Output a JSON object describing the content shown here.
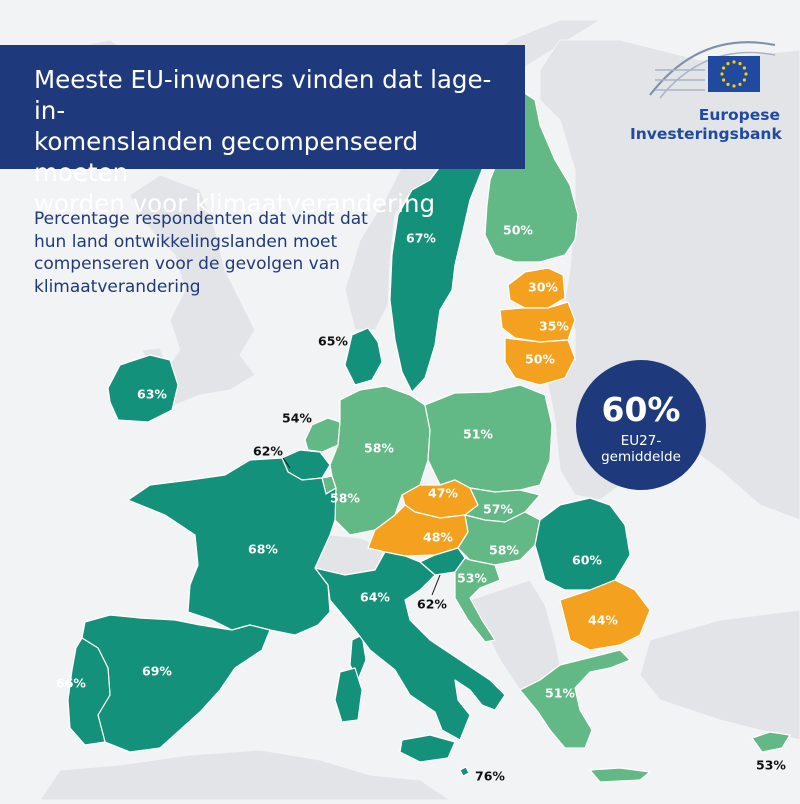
{
  "title": "Meeste EU-inwoners vinden dat lage-in-komenslanden gecompenseerd moeten worden voor klimaatverandering",
  "title_lines": [
    "Meeste EU-inwoners vinden dat lage-in-",
    "komenslanden gecompenseerd moeten",
    "worden voor klimaatverandering"
  ],
  "subtitle_lines": [
    "Percentage respondenten dat vindt dat",
    "hun land ontwikkelingslanden moet",
    "compenseren voor de gevolgen van",
    "klimaatverandering"
  ],
  "logo": {
    "line1": "Europese",
    "line2": "Investeringsbank"
  },
  "average": {
    "value": "60%",
    "label_line1": "EU27-",
    "label_line2": "gemiddelde"
  },
  "colors": {
    "high": "#14917a",
    "mid": "#63b985",
    "low": "#f4a11f",
    "nonEU": "#e2e4e7",
    "sea": "#f2f3f5",
    "brand": "#1f3a7c"
  },
  "countries": [
    {
      "name": "Sweden",
      "value": "67%",
      "cls": "high"
    },
    {
      "name": "Finland",
      "value": "50%",
      "cls": "mid"
    },
    {
      "name": "Estonia",
      "value": "30%",
      "cls": "low"
    },
    {
      "name": "Latvia",
      "value": "35%",
      "cls": "low"
    },
    {
      "name": "Lithuania",
      "value": "50%",
      "cls": "low"
    },
    {
      "name": "Denmark",
      "value": "65%",
      "cls": "high"
    },
    {
      "name": "Ireland",
      "value": "63%",
      "cls": "high"
    },
    {
      "name": "Netherlands",
      "value": "54%",
      "cls": "mid"
    },
    {
      "name": "Belgium",
      "value": "62%",
      "cls": "high"
    },
    {
      "name": "Luxembourg",
      "value": "58%",
      "cls": "mid"
    },
    {
      "name": "Germany",
      "value": "58%",
      "cls": "mid"
    },
    {
      "name": "Poland",
      "value": "51%",
      "cls": "mid"
    },
    {
      "name": "Czechia",
      "value": "47%",
      "cls": "low"
    },
    {
      "name": "Slovakia",
      "value": "57%",
      "cls": "mid"
    },
    {
      "name": "Austria",
      "value": "48%",
      "cls": "low"
    },
    {
      "name": "Hungary",
      "value": "58%",
      "cls": "mid"
    },
    {
      "name": "Slovenia",
      "value": "62%",
      "cls": "high"
    },
    {
      "name": "Croatia",
      "value": "53%",
      "cls": "mid"
    },
    {
      "name": "Romania",
      "value": "60%",
      "cls": "high"
    },
    {
      "name": "Bulgaria",
      "value": "44%",
      "cls": "low"
    },
    {
      "name": "France",
      "value": "68%",
      "cls": "high"
    },
    {
      "name": "Italy",
      "value": "64%",
      "cls": "high"
    },
    {
      "name": "Malta",
      "value": "76%",
      "cls": "high"
    },
    {
      "name": "Spain",
      "value": "69%",
      "cls": "high"
    },
    {
      "name": "Portugal",
      "value": "66%",
      "cls": "high"
    },
    {
      "name": "Greece",
      "value": "51%",
      "cls": "mid"
    },
    {
      "name": "Cyprus",
      "value": "53%",
      "cls": "mid"
    }
  ]
}
